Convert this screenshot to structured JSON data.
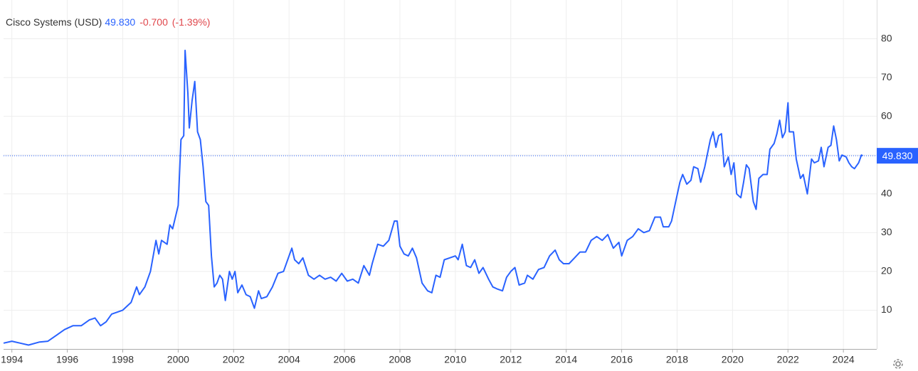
{
  "chart_data": {
    "type": "line",
    "title": "Cisco Systems (USD)",
    "last_price": {
      "value": 49.83,
      "label": "49.830"
    },
    "change": {
      "value": -0.7,
      "label": "-0.700"
    },
    "change_pct": {
      "value": -1.39,
      "label": "(-1.39%)"
    },
    "x": [
      1993.7,
      1994.0,
      1994.3,
      1994.6,
      1995.0,
      1995.3,
      1995.6,
      1995.9,
      1996.2,
      1996.5,
      1996.8,
      1997.0,
      1997.2,
      1997.4,
      1997.6,
      1997.8,
      1998.0,
      1998.3,
      1998.5,
      1998.6,
      1998.8,
      1999.0,
      1999.2,
      1999.3,
      1999.4,
      1999.6,
      1999.7,
      1999.8,
      1999.9,
      2000.0,
      2000.1,
      2000.2,
      2000.25,
      2000.35,
      2000.4,
      2000.5,
      2000.6,
      2000.7,
      2000.8,
      2000.9,
      2001.0,
      2001.1,
      2001.2,
      2001.3,
      2001.4,
      2001.5,
      2001.6,
      2001.7,
      2001.85,
      2001.95,
      2002.05,
      2002.15,
      2002.3,
      2002.45,
      2002.6,
      2002.75,
      2002.9,
      2003.0,
      2003.2,
      2003.4,
      2003.6,
      2003.8,
      2004.0,
      2004.1,
      2004.2,
      2004.35,
      2004.5,
      2004.7,
      2004.9,
      2005.1,
      2005.3,
      2005.5,
      2005.7,
      2005.9,
      2006.1,
      2006.3,
      2006.5,
      2006.7,
      2006.9,
      2007.0,
      2007.2,
      2007.4,
      2007.6,
      2007.8,
      2007.9,
      2008.0,
      2008.15,
      2008.3,
      2008.45,
      2008.6,
      2008.8,
      2009.0,
      2009.15,
      2009.3,
      2009.45,
      2009.6,
      2009.8,
      2010.0,
      2010.1,
      2010.25,
      2010.4,
      2010.55,
      2010.7,
      2010.85,
      2011.0,
      2011.2,
      2011.35,
      2011.5,
      2011.7,
      2011.85,
      2012.0,
      2012.15,
      2012.3,
      2012.5,
      2012.6,
      2012.8,
      2013.0,
      2013.2,
      2013.4,
      2013.6,
      2013.75,
      2013.9,
      2014.1,
      2014.3,
      2014.5,
      2014.7,
      2014.9,
      2015.1,
      2015.3,
      2015.5,
      2015.7,
      2015.9,
      2016.0,
      2016.2,
      2016.4,
      2016.6,
      2016.8,
      2017.0,
      2017.2,
      2017.4,
      2017.5,
      2017.7,
      2017.8,
      2017.95,
      2018.1,
      2018.2,
      2018.35,
      2018.5,
      2018.6,
      2018.75,
      2018.85,
      2019.0,
      2019.2,
      2019.3,
      2019.4,
      2019.5,
      2019.6,
      2019.7,
      2019.85,
      2019.95,
      2020.05,
      2020.15,
      2020.3,
      2020.4,
      2020.5,
      2020.6,
      2020.75,
      2020.85,
      2020.95,
      2021.1,
      2021.25,
      2021.35,
      2021.5,
      2021.6,
      2021.7,
      2021.8,
      2021.9,
      2022.0,
      2022.05,
      2022.2,
      2022.3,
      2022.45,
      2022.55,
      2022.7,
      2022.85,
      2022.95,
      2023.1,
      2023.2,
      2023.3,
      2023.45,
      2023.55,
      2023.65,
      2023.75,
      2023.85,
      2023.95,
      2024.1,
      2024.2,
      2024.3,
      2024.4,
      2024.55,
      2024.65,
      2024.7
    ],
    "series": [
      {
        "name": "Cisco Systems",
        "color": "#2962ff",
        "values": [
          1.5,
          2,
          1.5,
          1,
          1.8,
          2,
          3.5,
          5,
          6,
          6,
          7.5,
          8,
          6,
          7,
          9,
          9.5,
          10,
          12,
          16,
          14,
          16,
          20,
          28,
          24.5,
          28,
          27,
          32,
          31,
          34,
          37,
          54,
          55,
          77,
          66,
          57,
          64,
          69,
          56,
          54,
          47,
          38,
          37,
          24,
          16,
          17,
          19,
          18,
          12.5,
          20,
          18,
          20,
          14.5,
          16.5,
          14,
          13.5,
          10.5,
          15,
          13,
          13.5,
          16,
          19.5,
          20,
          24,
          26,
          23,
          22,
          23.5,
          19,
          18,
          19,
          18,
          18.5,
          17.5,
          19.5,
          17.5,
          18,
          17,
          21.5,
          19,
          22,
          27,
          26.5,
          28,
          33,
          33,
          26.5,
          24.5,
          24,
          26,
          23.5,
          17,
          15,
          14.5,
          19,
          18.5,
          23,
          23.5,
          24,
          23,
          27,
          21.5,
          21,
          23,
          19.5,
          21,
          18,
          16,
          15.5,
          15,
          18.5,
          20,
          21,
          16.5,
          17,
          19,
          18,
          20.5,
          21,
          24,
          25.5,
          23,
          22,
          22,
          23.5,
          25,
          25,
          28,
          29,
          28,
          29.5,
          26,
          27.5,
          24,
          28,
          29,
          31,
          30,
          30.5,
          34,
          34,
          31.5,
          31.5,
          33,
          38,
          43,
          45,
          42.5,
          43.5,
          47,
          46.5,
          43,
          47,
          54,
          56,
          52,
          55,
          55.5,
          47,
          49.5,
          45,
          48,
          40,
          39,
          43,
          47.5,
          46.5,
          38,
          36,
          44,
          45,
          45,
          51.5,
          53,
          55.5,
          59,
          54.5,
          56,
          63.5,
          56,
          56,
          49,
          44,
          45,
          40,
          49,
          48,
          48.5,
          52,
          47,
          52,
          52.5,
          57.5,
          54,
          48.5,
          50,
          49.5,
          48,
          47,
          46.5,
          48,
          50,
          49.83
        ]
      }
    ],
    "xlim": [
      1993.7,
      2025.1
    ],
    "ylim": [
      0,
      90
    ],
    "xticks": [
      1994,
      1996,
      1998,
      2000,
      2002,
      2004,
      2006,
      2008,
      2010,
      2012,
      2014,
      2016,
      2018,
      2020,
      2022,
      2024
    ],
    "yticks": [
      10,
      20,
      30,
      40,
      50,
      60,
      70,
      80
    ],
    "grid": true
  }
}
